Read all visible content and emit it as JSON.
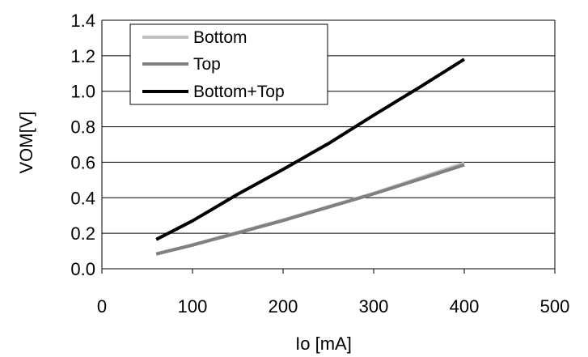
{
  "chart_data": {
    "type": "line",
    "title": "",
    "xlabel": "Io [mA]",
    "ylabel": "VOM[V]",
    "xlim": [
      0,
      500
    ],
    "ylim": [
      0.0,
      1.4
    ],
    "x_ticks": [
      "0",
      "100",
      "200",
      "300",
      "400",
      "500"
    ],
    "y_ticks": [
      "0.0",
      "0.2",
      "0.4",
      "0.6",
      "0.8",
      "1.0",
      "1.2",
      "1.4"
    ],
    "grid": "horizontal",
    "legend_position": "top-left",
    "series": [
      {
        "name": "Bottom",
        "color": "#c0c0c0",
        "x": [
          60,
          100,
          150,
          200,
          250,
          300,
          350,
          400
        ],
        "y": [
          0.085,
          0.135,
          0.205,
          0.275,
          0.35,
          0.425,
          0.51,
          0.595
        ]
      },
      {
        "name": "Top",
        "color": "#808080",
        "x": [
          60,
          100,
          150,
          200,
          250,
          300,
          350,
          400
        ],
        "y": [
          0.083,
          0.133,
          0.202,
          0.272,
          0.347,
          0.422,
          0.503,
          0.585
        ]
      },
      {
        "name": "Bottom+Top",
        "color": "#000000",
        "x": [
          60,
          100,
          150,
          200,
          250,
          300,
          350,
          400
        ],
        "y": [
          0.165,
          0.27,
          0.42,
          0.56,
          0.705,
          0.865,
          1.02,
          1.18
        ]
      }
    ]
  }
}
